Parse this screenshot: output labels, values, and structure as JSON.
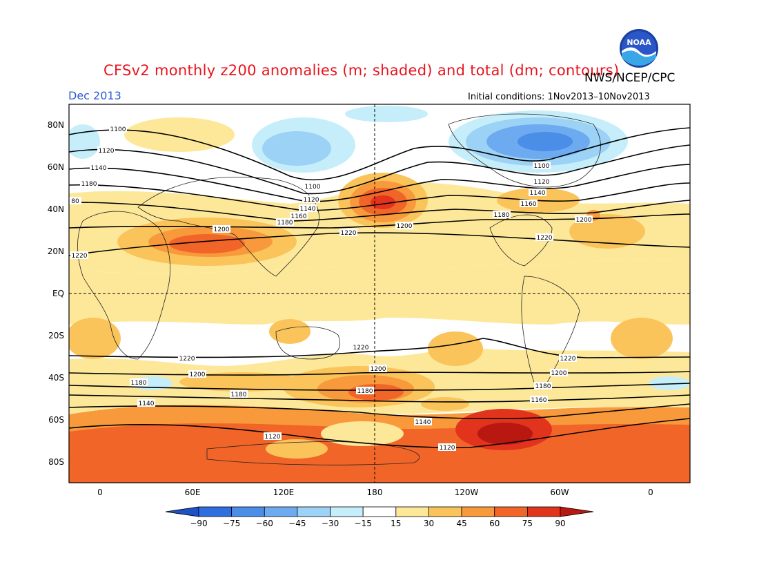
{
  "header": {
    "title": "CFSv2 monthly z200 anomalies (m; shaded) and total (dm; contours)",
    "agency": "NWS/NCEP/CPC",
    "month": "Dec 2013",
    "initial_conditions": "Initial conditions: 1Nov2013–10Nov2013",
    "logo_text": "NOAA"
  },
  "axes": {
    "lat_ticks": [
      {
        "label": "80N",
        "lat": 80
      },
      {
        "label": "60N",
        "lat": 60
      },
      {
        "label": "40N",
        "lat": 40
      },
      {
        "label": "20N",
        "lat": 20
      },
      {
        "label": "EQ",
        "lat": 0
      },
      {
        "label": "20S",
        "lat": -20
      },
      {
        "label": "40S",
        "lat": -40
      },
      {
        "label": "60S",
        "lat": -60
      },
      {
        "label": "80S",
        "lat": -80
      }
    ],
    "lon_ticks": [
      {
        "label": "0",
        "lon": 0
      },
      {
        "label": "60E",
        "lon": 60
      },
      {
        "label": "120E",
        "lon": 120
      },
      {
        "label": "180",
        "lon": 180
      },
      {
        "label": "120W",
        "lon": 240
      },
      {
        "label": "60W",
        "lon": 300
      },
      {
        "label": "0",
        "lon": 360
      }
    ],
    "lon_range": [
      -20,
      380
    ],
    "lat_range": [
      -90,
      90
    ]
  },
  "colorbar": {
    "levels": [
      "−90",
      "−75",
      "−60",
      "−45",
      "−30",
      "−15",
      "15",
      "30",
      "45",
      "60",
      "75",
      "90"
    ],
    "colors": [
      "#1e50c8",
      "#2e6ee0",
      "#4a8ee8",
      "#6eaaf0",
      "#9bd2f5",
      "#c6eefa",
      "#ffffff",
      "#fde89a",
      "#fbc45a",
      "#f89a3c",
      "#f26528",
      "#e2331d",
      "#b81810"
    ]
  },
  "contour_labels": [
    "1100",
    "1120",
    "1140",
    "1160",
    "1180",
    "1200",
    "1220",
    "80"
  ],
  "anomaly_regions": [
    {
      "name": "north-pacific-ridge",
      "lon": 190,
      "lat": 42,
      "value": 75
    },
    {
      "name": "arabia-india-high",
      "lon": 70,
      "lat": 25,
      "value": 60
    },
    {
      "name": "new-zealand-high",
      "lon": 180,
      "lat": -47,
      "value": 60
    },
    {
      "name": "amundsen-sea-high",
      "lon": 255,
      "lat": -68,
      "value": 75
    },
    {
      "name": "canada-trough",
      "lon": 265,
      "lat": 75,
      "value": -60
    },
    {
      "name": "siberia-trough",
      "lon": 120,
      "lat": 72,
      "value": -45
    },
    {
      "name": "antarctic-band",
      "lon": 180,
      "lat": -80,
      "value": 60
    }
  ],
  "contours": [
    {
      "value": 1100,
      "name": "contour-1100-nh"
    },
    {
      "value": 1120,
      "name": "contour-1120-nh"
    },
    {
      "value": 1140,
      "name": "contour-1140-nh"
    },
    {
      "value": 1160,
      "name": "contour-1160-nh"
    },
    {
      "value": 1180,
      "name": "contour-1180-nh"
    },
    {
      "value": 1200,
      "name": "contour-1200-nh"
    },
    {
      "value": 1220,
      "name": "contour-1220-nh"
    },
    {
      "value": 1220,
      "name": "contour-1220-sh"
    },
    {
      "value": 1200,
      "name": "contour-1200-sh"
    },
    {
      "value": 1180,
      "name": "contour-1180-sh"
    },
    {
      "value": 1160,
      "name": "contour-1160-sh"
    },
    {
      "value": 1140,
      "name": "contour-1140-sh"
    },
    {
      "value": 1120,
      "name": "contour-1120-sh"
    }
  ]
}
